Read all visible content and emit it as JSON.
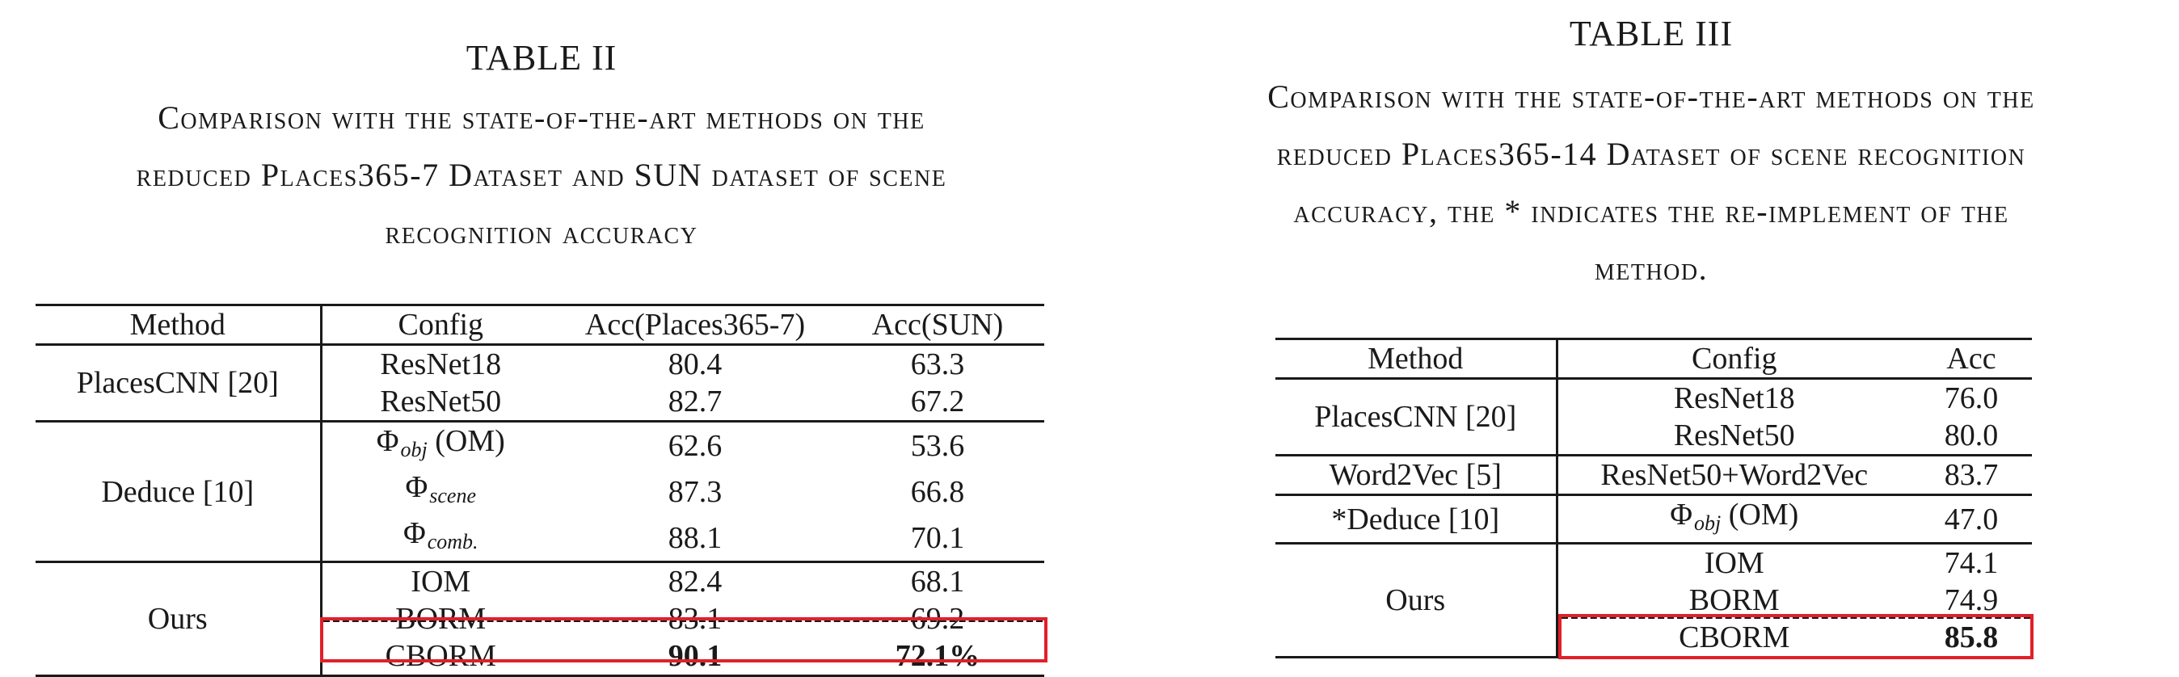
{
  "table2": {
    "number": "TABLE II",
    "caption_lines": [
      "Comparison with the state-of-the-art methods on the",
      "reduced Places365-7 Dataset and SUN dataset of scene",
      "recognition accuracy"
    ],
    "headers": [
      "Method",
      "Config",
      "Acc(Places365-7)",
      "Acc(SUN)"
    ],
    "groups": [
      {
        "method": "PlacesCNN [20]",
        "rows": [
          {
            "config": "ResNet18",
            "acc1": "80.4",
            "acc2": "63.3"
          },
          {
            "config": "ResNet50",
            "acc1": "82.7",
            "acc2": "67.2"
          }
        ]
      },
      {
        "method": "Deduce [10]",
        "rows": [
          {
            "config_symbol": "Φ",
            "config_sub": "obj",
            "config_suffix": " (OM)",
            "acc1": "62.6",
            "acc2": "53.6"
          },
          {
            "config_symbol": "Φ",
            "config_sub": "scene",
            "config_suffix": "",
            "acc1": "87.3",
            "acc2": "66.8"
          },
          {
            "config_symbol": "Φ",
            "config_sub": "comb.",
            "config_suffix": "",
            "acc1": "88.1",
            "acc2": "70.1"
          }
        ]
      },
      {
        "method": "Ours",
        "rows": [
          {
            "config": "IOM",
            "acc1": "82.4",
            "acc2": "68.1"
          },
          {
            "config": "BORM",
            "acc1": "83.1",
            "acc2": "69.2"
          },
          {
            "config": "CBORM",
            "acc1": "90.1",
            "acc2": "72.1%"
          }
        ]
      }
    ]
  },
  "table3": {
    "number": "TABLE III",
    "caption_lines": [
      "Comparison with the state-of-the-art methods on the",
      "reduced Places365-14 Dataset of scene recognition",
      "accuracy, the * indicates the re-implement of the",
      "method."
    ],
    "headers": [
      "Method",
      "Config",
      "Acc"
    ],
    "groups": [
      {
        "method": "PlacesCNN [20]",
        "rows": [
          {
            "config": "ResNet18",
            "acc": "76.0"
          },
          {
            "config": "ResNet50",
            "acc": "80.0"
          }
        ]
      },
      {
        "method": "Word2Vec [5]",
        "rows": [
          {
            "config": "ResNet50+Word2Vec",
            "acc": "83.7"
          }
        ]
      },
      {
        "method": "*Deduce [10]",
        "rows": [
          {
            "config_symbol": "Φ",
            "config_sub": "obj",
            "config_suffix": " (OM)",
            "acc": "47.0"
          }
        ]
      },
      {
        "method": "Ours",
        "rows": [
          {
            "config": "IOM",
            "acc": "74.1"
          },
          {
            "config": "BORM",
            "acc": "74.9"
          },
          {
            "config": "CBORM",
            "acc": "85.8"
          }
        ]
      }
    ]
  },
  "highlight_color": "#e0202a"
}
